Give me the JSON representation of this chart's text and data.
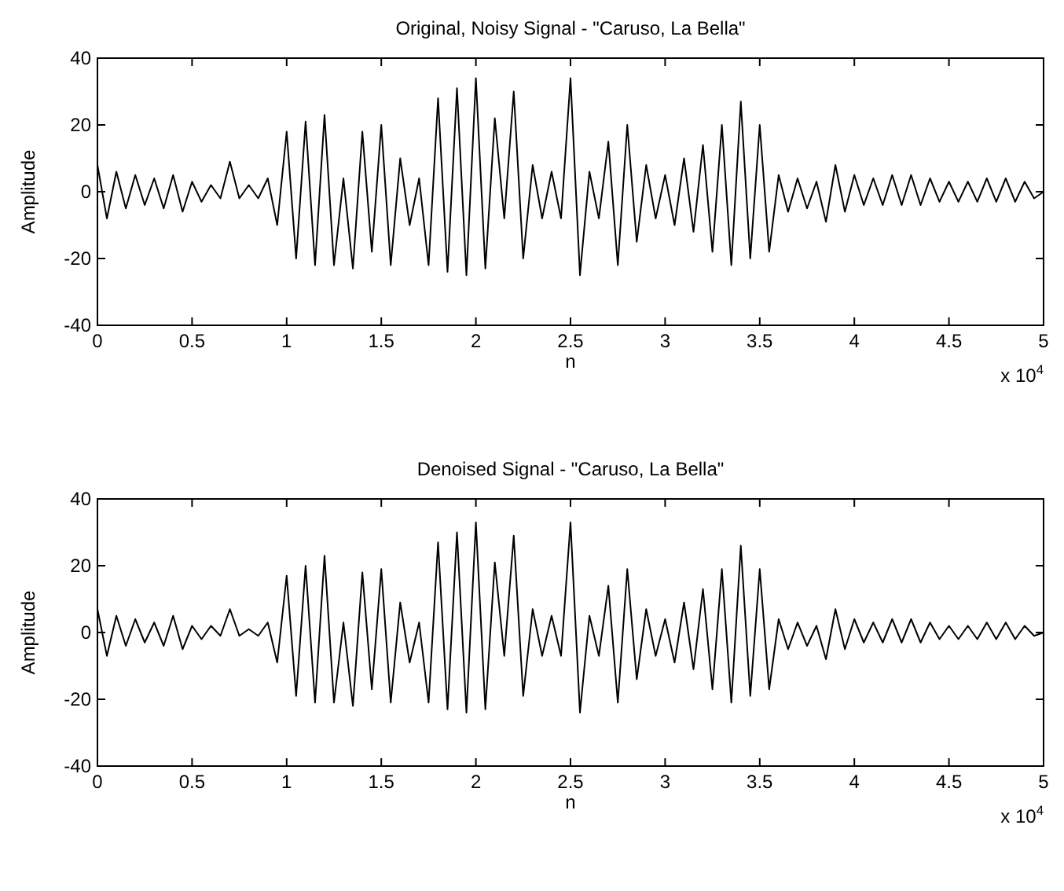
{
  "chart_data": [
    {
      "type": "line",
      "title": "Original, Noisy Signal - \"Caruso, La Bella\"",
      "xlabel": "n",
      "ylabel": "Amplitude",
      "annotations": [
        "x 10$^{4}$"
      ],
      "xlim": [
        0,
        5
      ],
      "xticks": [
        0,
        0.5,
        1,
        1.5,
        2,
        2.5,
        3,
        3.5,
        4,
        4.5,
        5
      ],
      "ylim": [
        -40,
        40
      ],
      "yticks": [
        -40,
        -20,
        0,
        20,
        40
      ],
      "x": [
        0,
        0.05,
        0.1,
        0.15,
        0.2,
        0.25,
        0.3,
        0.35,
        0.4,
        0.45,
        0.5,
        0.55,
        0.6,
        0.65,
        0.7,
        0.75,
        0.8,
        0.85,
        0.9,
        0.95,
        1,
        1.05,
        1.1,
        1.15,
        1.2,
        1.25,
        1.3,
        1.35,
        1.4,
        1.45,
        1.5,
        1.55,
        1.6,
        1.65,
        1.7,
        1.75,
        1.8,
        1.85,
        1.9,
        1.95,
        2,
        2.05,
        2.1,
        2.15,
        2.2,
        2.25,
        2.3,
        2.35,
        2.4,
        2.45,
        2.5,
        2.55,
        2.6,
        2.65,
        2.7,
        2.75,
        2.8,
        2.85,
        2.9,
        2.95,
        3,
        3.05,
        3.1,
        3.15,
        3.2,
        3.25,
        3.3,
        3.35,
        3.4,
        3.45,
        3.5,
        3.55,
        3.6,
        3.65,
        3.7,
        3.75,
        3.8,
        3.85,
        3.9,
        3.95,
        4,
        4.05,
        4.1,
        4.15,
        4.2,
        4.25,
        4.3,
        4.35,
        4.4,
        4.45,
        4.5,
        4.55,
        4.6,
        4.65,
        4.7,
        4.75,
        4.8,
        4.85,
        4.9,
        4.95,
        5
      ],
      "series": [
        {
          "color": "#000000",
          "values": [
            8,
            -8,
            6,
            -5,
            5,
            -4,
            4,
            -5,
            5,
            -6,
            3,
            -3,
            2,
            -2,
            9,
            -2,
            2,
            -2,
            4,
            -10,
            18,
            -20,
            21,
            -22,
            23,
            -22,
            4,
            -23,
            18,
            -18,
            20,
            -22,
            10,
            -10,
            4,
            -22,
            28,
            -24,
            31,
            -25,
            34,
            -23,
            22,
            -8,
            30,
            -20,
            8,
            -8,
            6,
            -8,
            34,
            -25,
            6,
            -8,
            15,
            -22,
            20,
            -15,
            8,
            -8,
            5,
            -10,
            10,
            -12,
            14,
            -18,
            20,
            -22,
            27,
            -20,
            20,
            -18,
            5,
            -6,
            4,
            -5,
            3,
            -9,
            8,
            -6,
            5,
            -4,
            4,
            -4,
            5,
            -4,
            5,
            -4,
            4,
            -3,
            3,
            -3,
            3,
            -3,
            4,
            -3,
            4,
            -3,
            3,
            -2,
            0
          ]
        }
      ]
    },
    {
      "type": "line",
      "title": "Denoised Signal - \"Caruso, La Bella\"",
      "xlabel": "n",
      "ylabel": "Amplitude",
      "annotations": [
        "x 10$^{4}$"
      ],
      "xlim": [
        0,
        5
      ],
      "xticks": [
        0,
        0.5,
        1,
        1.5,
        2,
        2.5,
        3,
        3.5,
        4,
        4.5,
        5
      ],
      "ylim": [
        -40,
        40
      ],
      "yticks": [
        -40,
        -20,
        0,
        20,
        40
      ],
      "x": [
        0,
        0.05,
        0.1,
        0.15,
        0.2,
        0.25,
        0.3,
        0.35,
        0.4,
        0.45,
        0.5,
        0.55,
        0.6,
        0.65,
        0.7,
        0.75,
        0.8,
        0.85,
        0.9,
        0.95,
        1,
        1.05,
        1.1,
        1.15,
        1.2,
        1.25,
        1.3,
        1.35,
        1.4,
        1.45,
        1.5,
        1.55,
        1.6,
        1.65,
        1.7,
        1.75,
        1.8,
        1.85,
        1.9,
        1.95,
        2,
        2.05,
        2.1,
        2.15,
        2.2,
        2.25,
        2.3,
        2.35,
        2.4,
        2.45,
        2.5,
        2.55,
        2.6,
        2.65,
        2.7,
        2.75,
        2.8,
        2.85,
        2.9,
        2.95,
        3,
        3.05,
        3.1,
        3.15,
        3.2,
        3.25,
        3.3,
        3.35,
        3.4,
        3.45,
        3.5,
        3.55,
        3.6,
        3.65,
        3.7,
        3.75,
        3.8,
        3.85,
        3.9,
        3.95,
        4,
        4.05,
        4.1,
        4.15,
        4.2,
        4.25,
        4.3,
        4.35,
        4.4,
        4.45,
        4.5,
        4.55,
        4.6,
        4.65,
        4.7,
        4.75,
        4.8,
        4.85,
        4.9,
        4.95,
        5
      ],
      "series": [
        {
          "color": "#000000",
          "values": [
            7,
            -7,
            5,
            -4,
            4,
            -3,
            3,
            -4,
            5,
            -5,
            2,
            -2,
            2,
            -1,
            7,
            -1,
            1,
            -1,
            3,
            -9,
            17,
            -19,
            20,
            -21,
            23,
            -21,
            3,
            -22,
            18,
            -17,
            19,
            -21,
            9,
            -9,
            3,
            -21,
            27,
            -23,
            30,
            -24,
            33,
            -23,
            21,
            -7,
            29,
            -19,
            7,
            -7,
            5,
            -7,
            33,
            -24,
            5,
            -7,
            14,
            -21,
            19,
            -14,
            7,
            -7,
            4,
            -9,
            9,
            -11,
            13,
            -17,
            19,
            -21,
            26,
            -19,
            19,
            -17,
            4,
            -5,
            3,
            -4,
            2,
            -8,
            7,
            -5,
            4,
            -3,
            3,
            -3,
            4,
            -3,
            4,
            -3,
            3,
            -2,
            2,
            -2,
            2,
            -2,
            3,
            -2,
            3,
            -2,
            2,
            -1,
            0
          ]
        }
      ]
    }
  ]
}
